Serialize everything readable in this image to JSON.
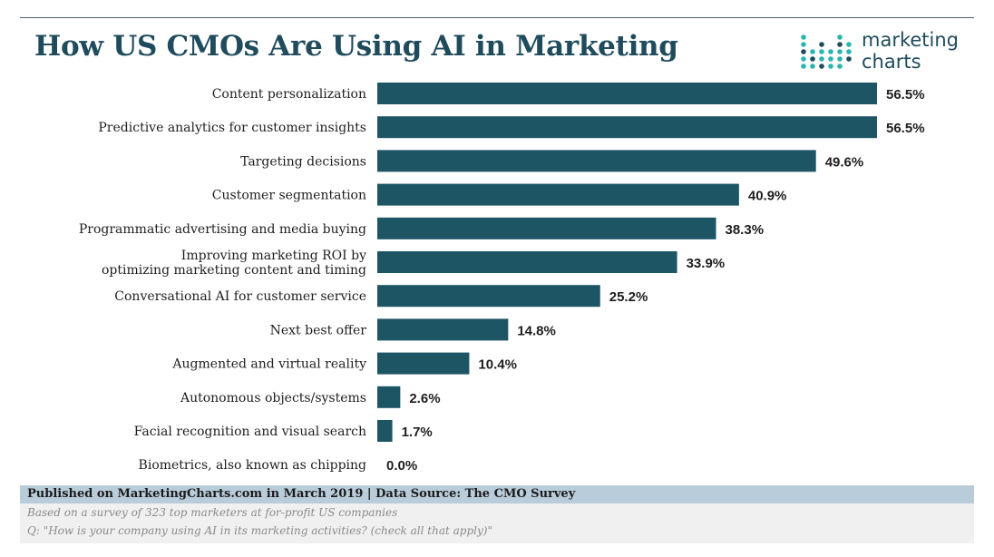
{
  "header": {
    "title": "How US CMOs Are Using AI in Marketing",
    "logo_line1": "marketing",
    "logo_line2": "charts"
  },
  "colors": {
    "bar": "#1e5565",
    "title": "#1f4b5c",
    "footer_band": "#b9ccda",
    "logo_dot_teal": "#2bb5b0",
    "logo_dot_navy": "#1f4b5c"
  },
  "chart_data": {
    "type": "bar",
    "orientation": "horizontal",
    "title": "How US CMOs Are Using AI in Marketing",
    "xlabel": "",
    "ylabel": "",
    "xlim": [
      0,
      60
    ],
    "grid": false,
    "categories": [
      "Content personalization",
      "Predictive analytics for customer insights",
      "Targeting decisions",
      "Customer segmentation",
      "Programmatic advertising and media buying",
      "Improving marketing ROI by\noptimizing marketing content and timing",
      "Conversational AI for customer service",
      "Next best offer",
      "Augmented and virtual reality",
      "Autonomous objects/systems",
      "Facial recognition and visual search",
      "Biometrics, also known as chipping"
    ],
    "values": [
      56.5,
      56.5,
      49.6,
      40.9,
      38.3,
      33.9,
      25.2,
      14.8,
      10.4,
      2.6,
      1.7,
      0.0
    ],
    "value_labels": [
      "56.5%",
      "56.5%",
      "49.6%",
      "40.9%",
      "38.3%",
      "33.9%",
      "25.2%",
      "14.8%",
      "10.4%",
      "2.6%",
      "1.7%",
      "0.0%"
    ]
  },
  "footer": {
    "published": "Published on MarketingCharts.com in March 2019 | Data Source: The CMO Survey",
    "note1": "Based on a survey of 323 top marketers at for-profit US companies",
    "note2": "Q: \"How is your company using AI in its marketing activities? (check all that apply)\""
  }
}
